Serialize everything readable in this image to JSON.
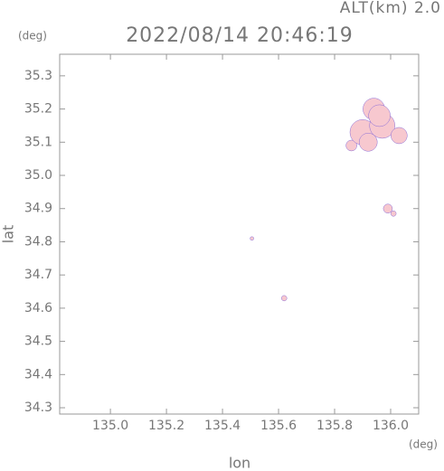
{
  "chart_data": {
    "type": "scatter",
    "title": "2022/08/14 20:46:19",
    "subtitle": "ALT(km)  2.0",
    "x_label": "lon",
    "y_label": "lat",
    "x_unit": "(deg)",
    "y_unit": "(deg)",
    "x": [
      135.86,
      135.9,
      135.94,
      135.97,
      136.03,
      135.92,
      135.96,
      135.99,
      136.01,
      135.505,
      135.62
    ],
    "y": [
      35.09,
      35.13,
      35.2,
      35.15,
      35.12,
      35.1,
      35.18,
      34.9,
      34.885,
      34.81,
      34.63
    ],
    "sizes": [
      6,
      14,
      12,
      14,
      9,
      10,
      12,
      5,
      3,
      2,
      3
    ],
    "color": "#f7c8cf",
    "edge_color": "#8a6cd8",
    "xlim": [
      134.819,
      136.1
    ],
    "ylim": [
      34.281,
      35.365
    ],
    "xticks": [
      {
        "value": 135.0,
        "label": "135.0"
      },
      135.2,
      135.4,
      135.6,
      135.8,
      {
        "value": 136.0,
        "label": "136.0"
      }
    ],
    "yticks": [
      34.3,
      34.4,
      34.5,
      34.6,
      34.7,
      34.8,
      34.9,
      {
        "value": 35.0,
        "label": "35.0"
      },
      35.1,
      35.2,
      35.3
    ]
  }
}
